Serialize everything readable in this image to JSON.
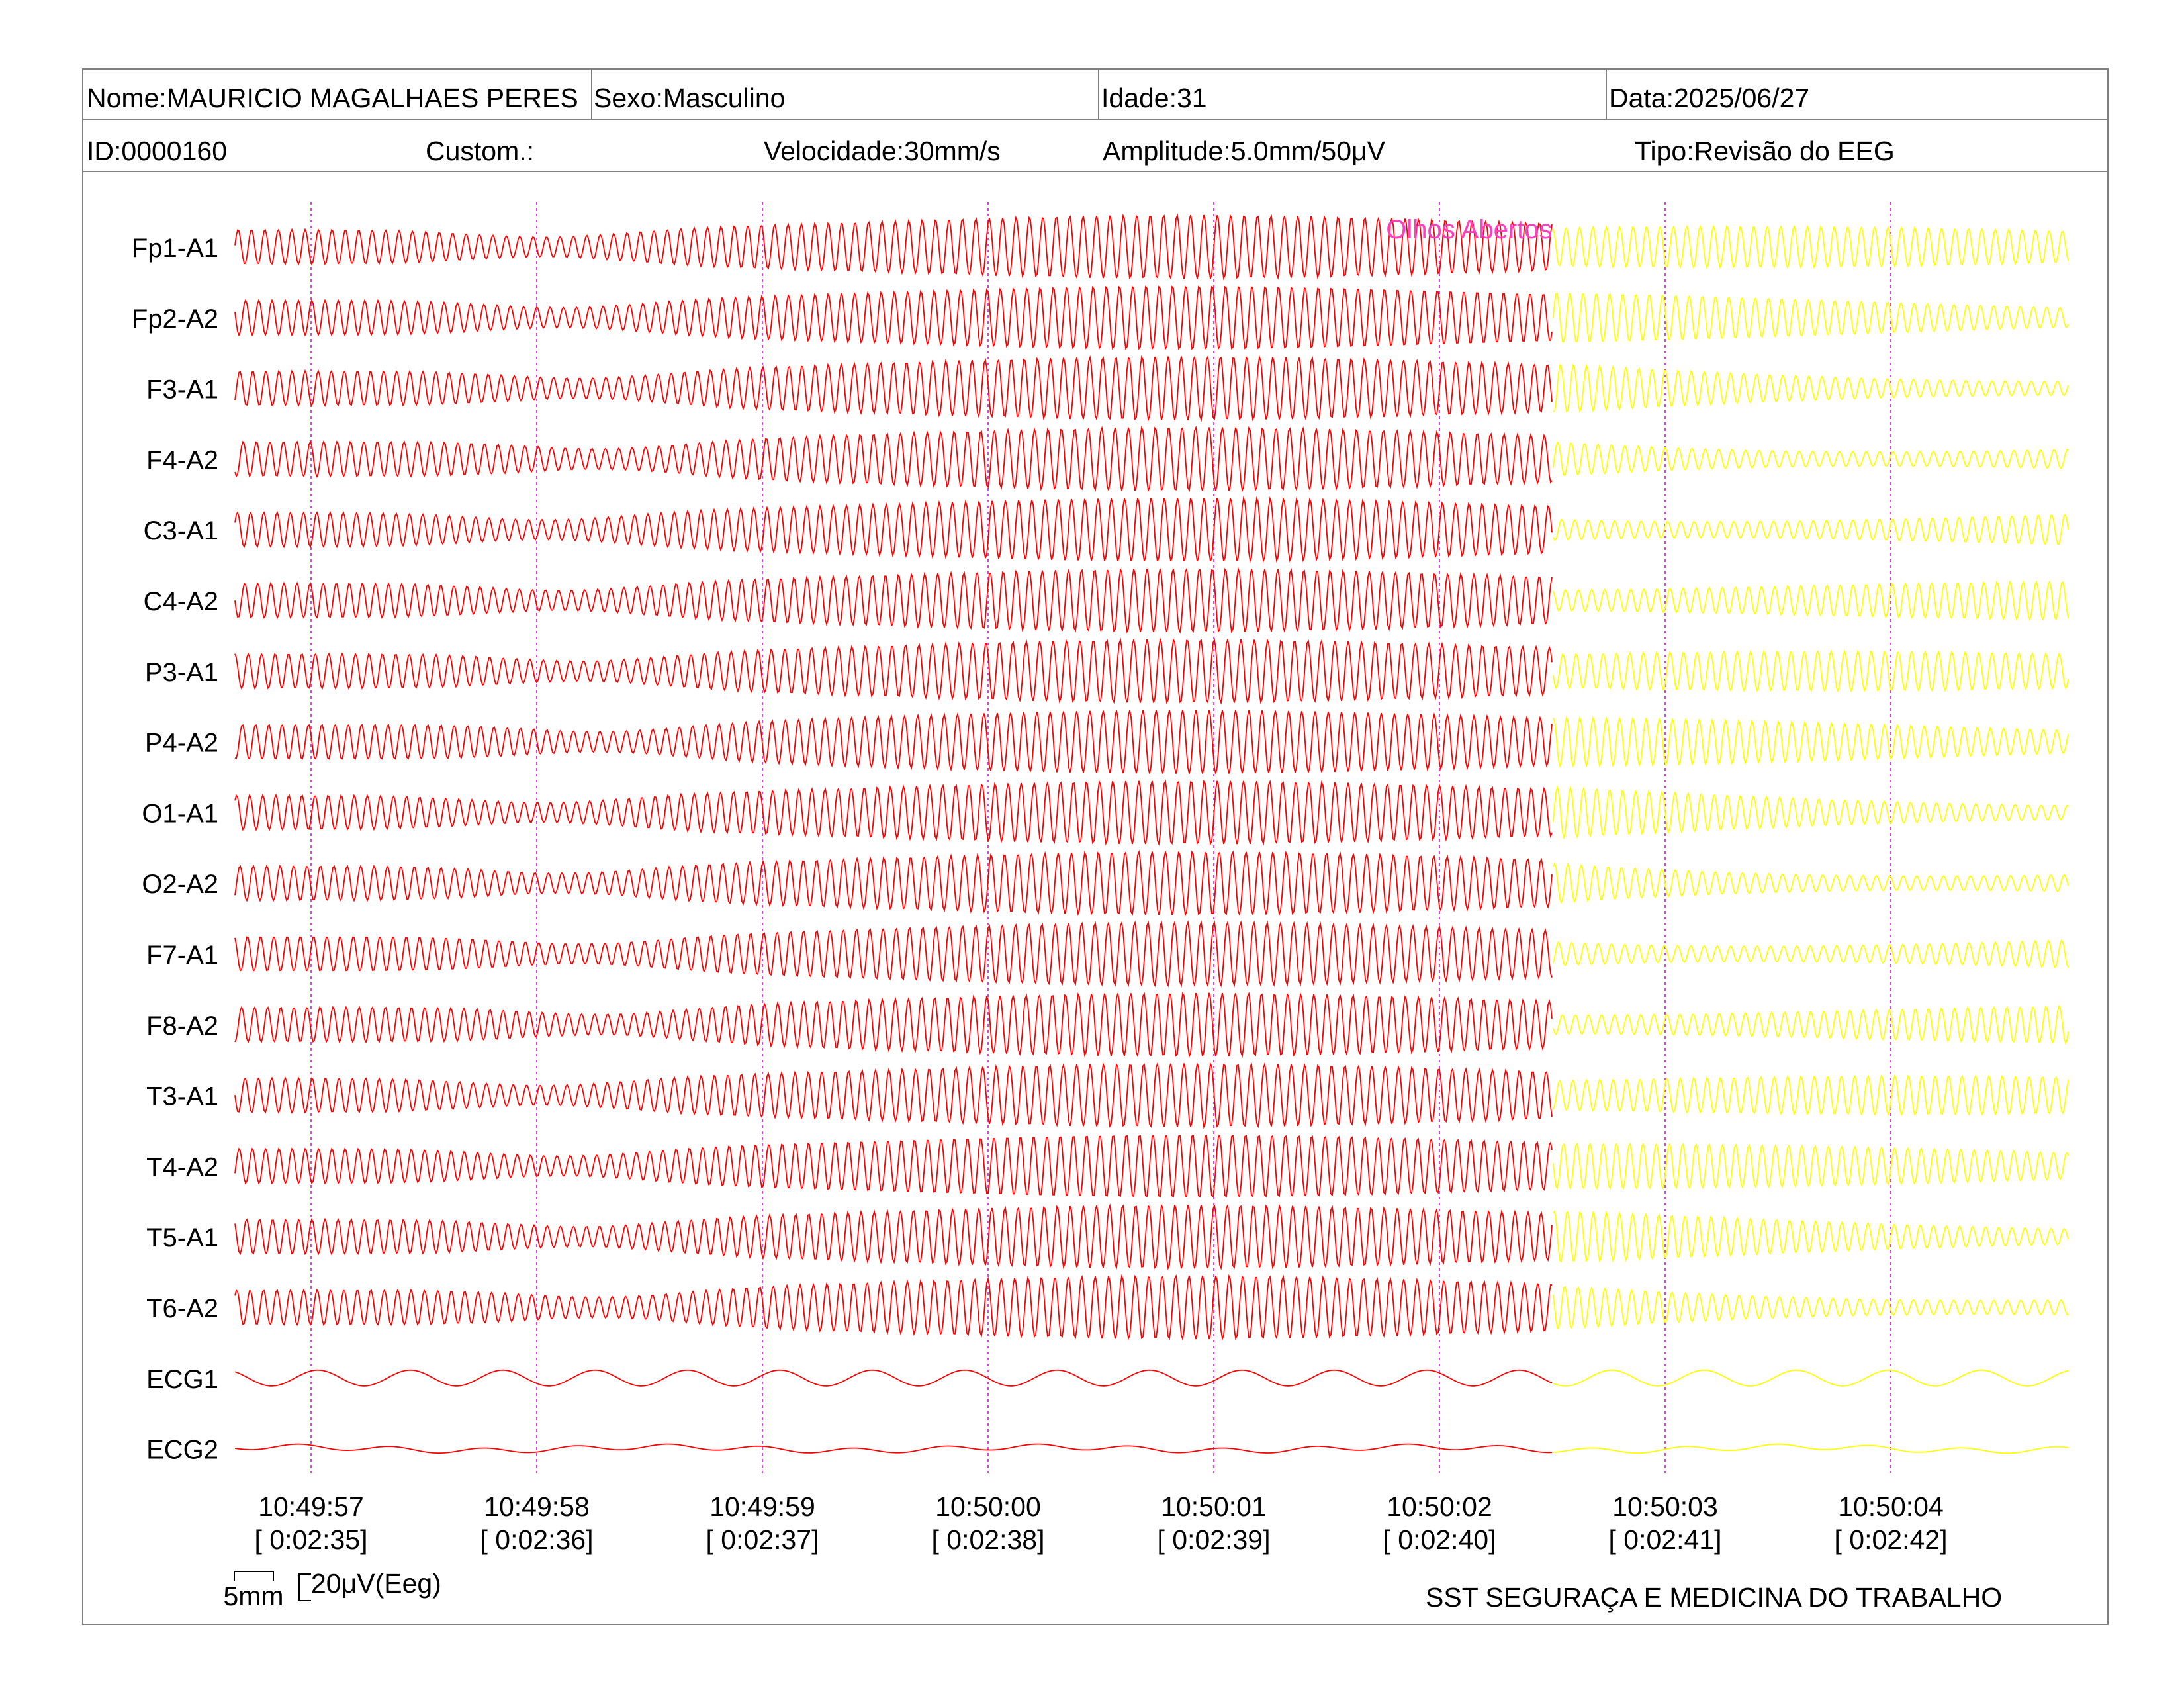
{
  "header": {
    "row1": [
      {
        "name": "patient-name",
        "label": "Nome:MAURICIO MAGALHAES PERES"
      },
      {
        "name": "patient-sex",
        "label": "Sexo:Masculino"
      },
      {
        "name": "patient-age",
        "label": "Idade:31"
      },
      {
        "name": "exam-date",
        "label": "Data:2025/06/27"
      }
    ],
    "row2": [
      {
        "name": "patient-id",
        "label": "ID:0000160"
      },
      {
        "name": "custom-field",
        "label": "Custom.:"
      },
      {
        "name": "speed",
        "label": "Velocidade:30mm/s"
      },
      {
        "name": "amplitude",
        "label": "Amplitude:5.0mm/50μV"
      },
      {
        "name": "exam-type",
        "label": "Tipo:Revisão do EEG"
      }
    ]
  },
  "annotation": {
    "label": "Olhos Abertos",
    "color": "#ff3fbf"
  },
  "colors": {
    "trace_before": "#ff0000",
    "trace_after": "#ffff00",
    "gridline": "#dd44dd",
    "border": "#808080"
  },
  "scale": {
    "time_label": "5mm",
    "amp_label": "20μV(Eeg)"
  },
  "footer": {
    "company": "SST SEGURAÇA E MEDICINA DO TRABALHO"
  },
  "chart_data": {
    "type": "line",
    "channels": [
      "Fp1-A1",
      "Fp2-A2",
      "F3-A1",
      "F4-A2",
      "C3-A1",
      "C4-A2",
      "P3-A1",
      "P4-A2",
      "O1-A1",
      "O2-A2",
      "F7-A1",
      "F8-A2",
      "T3-A1",
      "T4-A2",
      "T5-A1",
      "T6-A2",
      "ECG1",
      "ECG2"
    ],
    "time_ticks": [
      {
        "clock": "10:49:57",
        "elapsed": "[ 0:02:35]"
      },
      {
        "clock": "10:49:58",
        "elapsed": "[ 0:02:36]"
      },
      {
        "clock": "10:49:59",
        "elapsed": "[ 0:02:37]"
      },
      {
        "clock": "10:50:00",
        "elapsed": "[ 0:02:38]"
      },
      {
        "clock": "10:50:01",
        "elapsed": "[ 0:02:39]"
      },
      {
        "clock": "10:50:02",
        "elapsed": "[ 0:02:40]"
      },
      {
        "clock": "10:50:03",
        "elapsed": "[ 0:02:41]"
      },
      {
        "clock": "10:50:04",
        "elapsed": "[ 0:02:42]"
      }
    ],
    "xlim_seconds": [
      -0.33,
      7.8
    ],
    "annotation_time_seconds": 5.5,
    "grid": true,
    "legend": "none"
  }
}
